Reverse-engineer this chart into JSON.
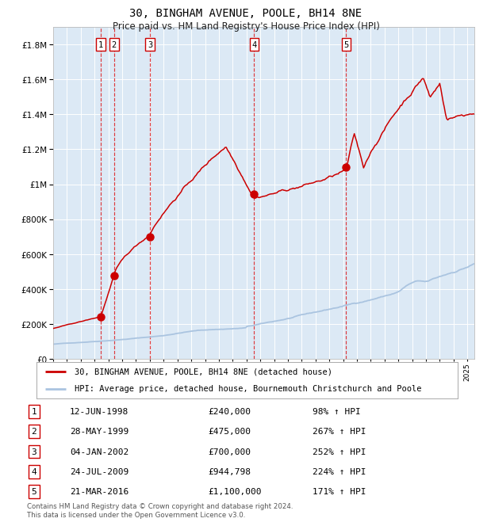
{
  "title": "30, BINGHAM AVENUE, POOLE, BH14 8NE",
  "subtitle": "Price paid vs. HM Land Registry's House Price Index (HPI)",
  "footer": "Contains HM Land Registry data © Crown copyright and database right 2024.\nThis data is licensed under the Open Government Licence v3.0.",
  "legend_line1": "30, BINGHAM AVENUE, POOLE, BH14 8NE (detached house)",
  "legend_line2": "HPI: Average price, detached house, Bournemouth Christchurch and Poole",
  "transactions": [
    {
      "num": 1,
      "date": "12-JUN-1998",
      "year": 1998.45,
      "price": 240000,
      "pct": "98%",
      "dir": "↑"
    },
    {
      "num": 2,
      "date": "28-MAY-1999",
      "year": 1999.41,
      "price": 475000,
      "pct": "267%",
      "dir": "↑"
    },
    {
      "num": 3,
      "date": "04-JAN-2002",
      "year": 2002.01,
      "price": 700000,
      "pct": "252%",
      "dir": "↑"
    },
    {
      "num": 4,
      "date": "24-JUL-2009",
      "year": 2009.56,
      "price": 944798,
      "pct": "224%",
      "dir": "↑"
    },
    {
      "num": 5,
      "date": "21-MAR-2016",
      "year": 2016.22,
      "price": 1100000,
      "pct": "171%",
      "dir": "↑"
    }
  ],
  "hpi_color": "#aac4e0",
  "price_color": "#cc0000",
  "bg_color": "#dce9f5",
  "grid_color": "#ffffff",
  "ylim": [
    0,
    1900000
  ],
  "yticks": [
    0,
    200000,
    400000,
    600000,
    800000,
    1000000,
    1200000,
    1400000,
    1600000,
    1800000
  ],
  "xlim_start": 1995.0,
  "xlim_end": 2025.5
}
